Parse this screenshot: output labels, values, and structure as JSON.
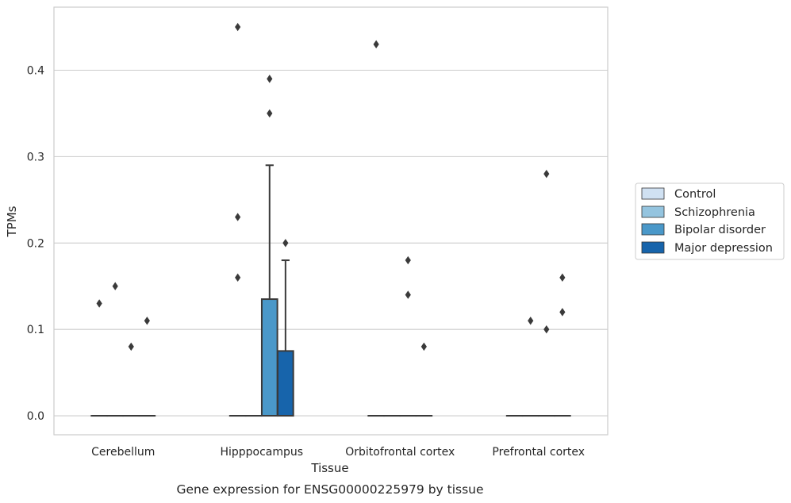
{
  "chart_data": {
    "type": "box",
    "title": "",
    "xlabel": "Tissue",
    "ylabel": "TPMs",
    "caption": "Gene expression for ENSG00000225979 by tissue",
    "ylim": [
      -0.022,
      0.473
    ],
    "yticks": [
      0.0,
      0.1,
      0.2,
      0.3,
      0.4
    ],
    "ytick_labels": [
      "0.0",
      "0.1",
      "0.2",
      "0.3",
      "0.4"
    ],
    "grid": "horizontal",
    "legend_position": "right",
    "categories": [
      "Cerebellum",
      "Hipppocampus",
      "Orbitofrontal cortex",
      "Prefrontal cortex"
    ],
    "series": [
      {
        "name": "Control",
        "color": "#d0e1f2",
        "boxes": [
          {
            "q1": 0,
            "median": 0,
            "q3": 0,
            "whisker_low": 0,
            "whisker_high": 0,
            "outliers": [
              0.13
            ]
          },
          {
            "q1": 0,
            "median": 0,
            "q3": 0,
            "whisker_low": 0,
            "whisker_high": 0,
            "outliers": [
              0.16,
              0.23,
              0.45
            ]
          },
          {
            "q1": 0,
            "median": 0,
            "q3": 0,
            "whisker_low": 0,
            "whisker_high": 0,
            "outliers": [
              0.43
            ]
          },
          {
            "q1": 0,
            "median": 0,
            "q3": 0,
            "whisker_low": 0,
            "whisker_high": 0,
            "outliers": []
          }
        ]
      },
      {
        "name": "Schizophrenia",
        "color": "#94c4df",
        "boxes": [
          {
            "q1": 0,
            "median": 0,
            "q3": 0,
            "whisker_low": 0,
            "whisker_high": 0,
            "outliers": [
              0.15
            ]
          },
          {
            "q1": 0,
            "median": 0,
            "q3": 0,
            "whisker_low": 0,
            "whisker_high": 0,
            "outliers": []
          },
          {
            "q1": 0,
            "median": 0,
            "q3": 0,
            "whisker_low": 0,
            "whisker_high": 0,
            "outliers": []
          },
          {
            "q1": 0,
            "median": 0,
            "q3": 0,
            "whisker_low": 0,
            "whisker_high": 0,
            "outliers": [
              0.11
            ]
          }
        ]
      },
      {
        "name": "Bipolar disorder",
        "color": "#4a98c9",
        "boxes": [
          {
            "q1": 0,
            "median": 0,
            "q3": 0,
            "whisker_low": 0,
            "whisker_high": 0,
            "outliers": [
              0.08
            ]
          },
          {
            "q1": 0,
            "median": 0,
            "q3": 0.135,
            "whisker_low": 0,
            "whisker_high": 0.29,
            "outliers": [
              0.35,
              0.39
            ]
          },
          {
            "q1": 0,
            "median": 0,
            "q3": 0,
            "whisker_low": 0,
            "whisker_high": 0,
            "outliers": [
              0.14,
              0.18
            ]
          },
          {
            "q1": 0,
            "median": 0,
            "q3": 0,
            "whisker_low": 0,
            "whisker_high": 0,
            "outliers": [
              0.1,
              0.28
            ]
          }
        ]
      },
      {
        "name": "Major depression",
        "color": "#1764ab",
        "boxes": [
          {
            "q1": 0,
            "median": 0,
            "q3": 0,
            "whisker_low": 0,
            "whisker_high": 0,
            "outliers": [
              0.11
            ]
          },
          {
            "q1": 0,
            "median": 0,
            "q3": 0.075,
            "whisker_low": 0,
            "whisker_high": 0.18,
            "outliers": [
              0.2
            ]
          },
          {
            "q1": 0,
            "median": 0,
            "q3": 0,
            "whisker_low": 0,
            "whisker_high": 0,
            "outliers": [
              0.08
            ]
          },
          {
            "q1": 0,
            "median": 0,
            "q3": 0,
            "whisker_low": 0,
            "whisker_high": 0,
            "outliers": [
              0.12,
              0.16
            ]
          }
        ]
      }
    ]
  }
}
